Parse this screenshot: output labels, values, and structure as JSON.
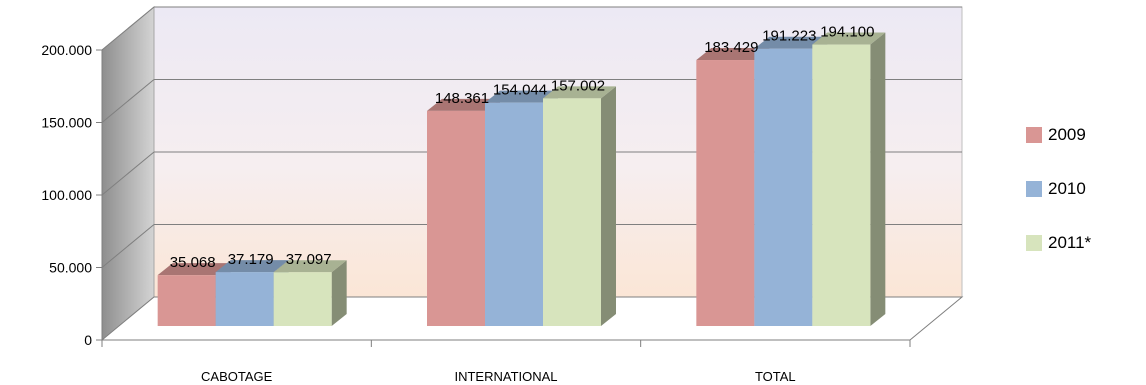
{
  "chart_data": {
    "type": "bar",
    "categories": [
      "CABOTAGE",
      "INTERNATIONAL",
      "TOTAL"
    ],
    "series": [
      {
        "name": "2009",
        "values": [
          35068,
          148361,
          183429
        ],
        "labels": [
          "35.068",
          "148.361",
          "183.429"
        ],
        "color": "#D99694"
      },
      {
        "name": "2010",
        "values": [
          37179,
          154044,
          191223
        ],
        "labels": [
          "37.179",
          "154.044",
          "191.223"
        ],
        "color": "#95B3D7"
      },
      {
        "name": "2011*",
        "values": [
          37097,
          157002,
          194100
        ],
        "labels": [
          "37.097",
          "157.002",
          "194.100"
        ],
        "color": "#D7E4BD"
      }
    ],
    "y_ticks": [
      {
        "value": 0,
        "label": "0"
      },
      {
        "value": 50000,
        "label": "50.000"
      },
      {
        "value": 100000,
        "label": "100.000"
      },
      {
        "value": 150000,
        "label": "150.000"
      },
      {
        "value": 200000,
        "label": "200.000"
      }
    ],
    "ylim": [
      0,
      200000
    ],
    "style": "3d-clustered-column",
    "grid": true,
    "legend_position": "right"
  }
}
